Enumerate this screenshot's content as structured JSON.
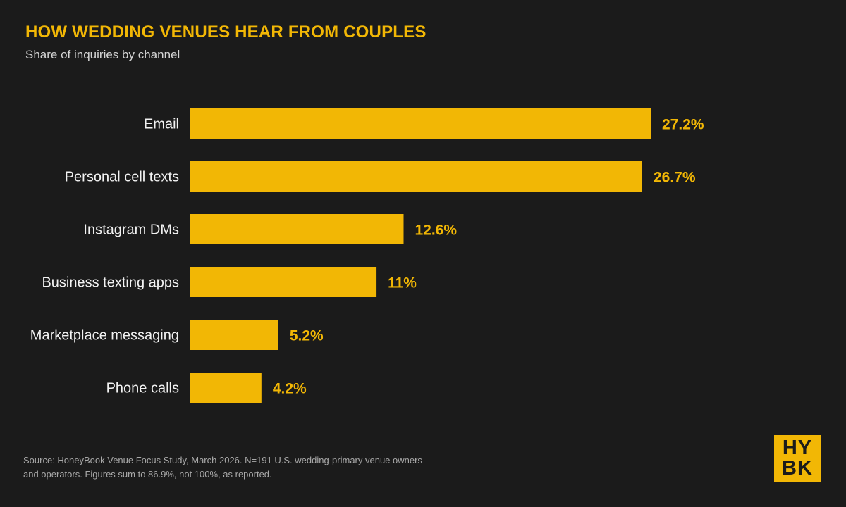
{
  "header": {
    "title": "HOW WEDDING VENUES HEAR FROM COUPLES",
    "subtitle": "Share of inquiries by channel"
  },
  "colors": {
    "background": "#1b1b1b",
    "accent": "#f2b705",
    "label": "#f2f2f2",
    "muted": "#a9a9a9"
  },
  "chart_data": {
    "type": "bar",
    "orientation": "horizontal",
    "title": "HOW WEDDING VENUES HEAR FROM COUPLES",
    "subtitle": "Share of inquiries by channel",
    "categories": [
      "Email",
      "Personal cell texts",
      "Instagram DMs",
      "Business texting apps",
      "Marketplace messaging",
      "Phone calls"
    ],
    "values": [
      27.2,
      26.7,
      12.6,
      11,
      5.2,
      4.2
    ],
    "value_labels": [
      "27.2%",
      "26.7%",
      "12.6%",
      "11%",
      "5.2%",
      "4.2%"
    ],
    "unit": "%",
    "xlim": [
      0,
      27.2
    ],
    "grid": false,
    "legend": "none"
  },
  "footer": {
    "source_line1": "Source: HoneyBook Venue Focus Study, March 2026. N=191 U.S. wedding-primary venue owners",
    "source_line2": "and operators. Figures sum to 86.9%, not 100%, as reported."
  },
  "logo": {
    "line1": "HY",
    "line2": "BK"
  }
}
